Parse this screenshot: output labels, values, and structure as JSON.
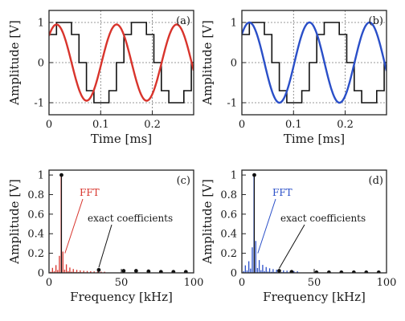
{
  "chart_data": [
    {
      "panel": "(a)",
      "type": "line",
      "xlabel": "Time [ms]",
      "ylabel": "Amplitude [V]",
      "xlim": [
        0,
        0.28
      ],
      "ylim": [
        -1.3,
        1.3
      ],
      "xticks": [
        0,
        0.1,
        0.2
      ],
      "xtick_labels": [
        "0",
        "0.1",
        "0.2"
      ],
      "yticks": [
        -1,
        0,
        1
      ],
      "ytick_labels": [
        "-1",
        "0",
        "1"
      ],
      "grid": true,
      "colors": {
        "sine": "#d8342c",
        "staircase": "#111111"
      },
      "series": [
        {
          "kind": "sine",
          "amplitude": 0.95,
          "frequency_khz": 8.6,
          "phase_deg": 45
        },
        {
          "kind": "staircase",
          "step_ms": 0.0145,
          "levels": [
            0.7,
            1,
            1,
            0.7,
            0,
            -0.7,
            -1,
            -1,
            -0.7,
            0
          ]
        }
      ]
    },
    {
      "panel": "(b)",
      "type": "line",
      "xlabel": "Time [ms]",
      "ylabel": "Amplitude [V]",
      "xlim": [
        0,
        0.28
      ],
      "ylim": [
        -1.3,
        1.3
      ],
      "xticks": [
        0,
        0.1,
        0.2
      ],
      "xtick_labels": [
        "0",
        "0.1",
        "0.2"
      ],
      "yticks": [
        -1,
        0,
        1
      ],
      "ytick_labels": [
        "-1",
        "0",
        "1"
      ],
      "grid": true,
      "colors": {
        "sine": "#2a4fc8",
        "staircase": "#111111"
      },
      "series": [
        {
          "kind": "sine",
          "amplitude": 1.0,
          "frequency_khz": 8.6,
          "phase_deg": 45
        },
        {
          "kind": "staircase",
          "step_ms": 0.0145,
          "levels": [
            0.7,
            1,
            1,
            0.7,
            0,
            -0.7,
            -1,
            -1,
            -0.7,
            0
          ]
        }
      ]
    },
    {
      "panel": "(c)",
      "type": "bar",
      "xlabel": "Frequency [kHz]",
      "ylabel": "Amplitude [V]",
      "xlim": [
        0,
        100
      ],
      "ylim": [
        0,
        1.05
      ],
      "xticks": [
        0,
        50,
        100
      ],
      "xtick_labels": [
        "0",
        "50",
        "100"
      ],
      "yticks": [
        0,
        0.2,
        0.4,
        0.6,
        0.8,
        1
      ],
      "ytick_labels": [
        "0",
        "0.2",
        "0.4",
        "0.6",
        "0.8",
        "1"
      ],
      "legend": [
        "FFT",
        "exact coefficients"
      ],
      "colors": {
        "fft": "#d8342c",
        "exact": "#111111"
      },
      "fft_spectrum": {
        "peak_khz": 8.6,
        "peak_value": 1.0,
        "bin_khz": 1.2,
        "extent_khz": 40,
        "sidelobe_scale": 0.3
      },
      "exact_coefficients": {
        "x": [
          8.6,
          34.4,
          51.6,
          60.2,
          68.8,
          77.4,
          86.0,
          94.6
        ],
        "y": [
          1.0,
          0.03,
          0.02,
          0.02,
          0.015,
          0.01,
          0.01,
          0.01
        ]
      }
    },
    {
      "panel": "(d)",
      "type": "bar",
      "xlabel": "Frequency [kHz]",
      "ylabel": "Amplitude [V]",
      "xlim": [
        0,
        100
      ],
      "ylim": [
        0,
        1.05
      ],
      "xticks": [
        0,
        50,
        100
      ],
      "xtick_labels": [
        "0",
        "50",
        "100"
      ],
      "yticks": [
        0,
        0.2,
        0.4,
        0.6,
        0.8,
        1
      ],
      "ytick_labels": [
        "0",
        "0.2",
        "0.4",
        "0.6",
        "0.8",
        "1"
      ],
      "legend": [
        "FFT",
        "exact coefficients"
      ],
      "colors": {
        "fft": "#2a4fc8",
        "exact": "#111111"
      },
      "fft_spectrum": {
        "peak_khz": 8.6,
        "peak_value": 1.0,
        "bin_khz": 1.2,
        "extent_khz": 40,
        "sidelobe_scale": 0.45
      },
      "exact_coefficients": {
        "x": [
          8.6,
          25.8,
          34.4,
          51.6,
          60.2,
          68.8,
          77.4,
          86.0,
          94.6
        ],
        "y": [
          1.0,
          0.02,
          0.01,
          0.005,
          0.005,
          0.005,
          0.005,
          0.005,
          0.005
        ]
      }
    }
  ]
}
